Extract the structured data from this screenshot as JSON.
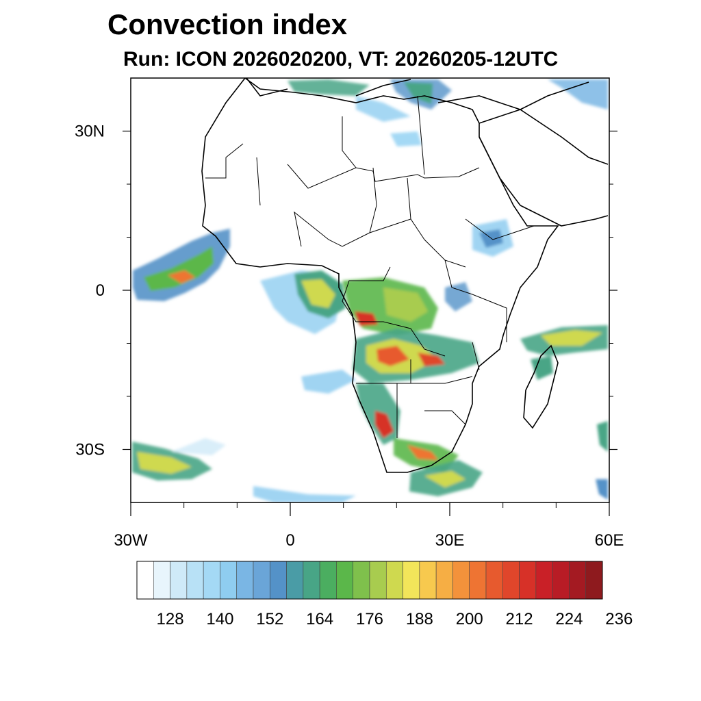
{
  "title": "Convection index",
  "subtitle": "Run: ICON 2026020200,  VT: 20260205-12UTC",
  "map": {
    "projection": "cylindrical-equidistant",
    "lon_range": [
      -30,
      60
    ],
    "lat_range": [
      -40,
      40
    ],
    "lat_ticks": [
      {
        "value": 30,
        "label": "30N"
      },
      {
        "value": 0,
        "label": "0"
      },
      {
        "value": -30,
        "label": "30S"
      }
    ],
    "lon_ticks": [
      {
        "value": -30,
        "label": "30W"
      },
      {
        "value": 0,
        "label": "0"
      },
      {
        "value": 30,
        "label": "30E"
      },
      {
        "value": 60,
        "label": "60E"
      }
    ],
    "minor_tick_step_deg": 10
  },
  "colorbar": {
    "colors": [
      "#ffffff",
      "#e8f5fc",
      "#cfeaf8",
      "#b8e1f6",
      "#a4d9f5",
      "#8fcdf0",
      "#7ab6e4",
      "#6aa5d8",
      "#5492c8",
      "#4a9ca6",
      "#48a586",
      "#4bae60",
      "#5bb74a",
      "#7fc04c",
      "#a8cc4f",
      "#cfd94f",
      "#f2e55a",
      "#f7c94e",
      "#f6ae44",
      "#f3923b",
      "#ee7433",
      "#e75a2e",
      "#e0462b",
      "#d73128",
      "#c92027",
      "#b81c25",
      "#a41a22",
      "#8e1a1e"
    ],
    "labels": [
      "128",
      "140",
      "152",
      "164",
      "176",
      "188",
      "200",
      "212",
      "224",
      "236"
    ],
    "label_start_index": 2,
    "label_every": 3
  }
}
